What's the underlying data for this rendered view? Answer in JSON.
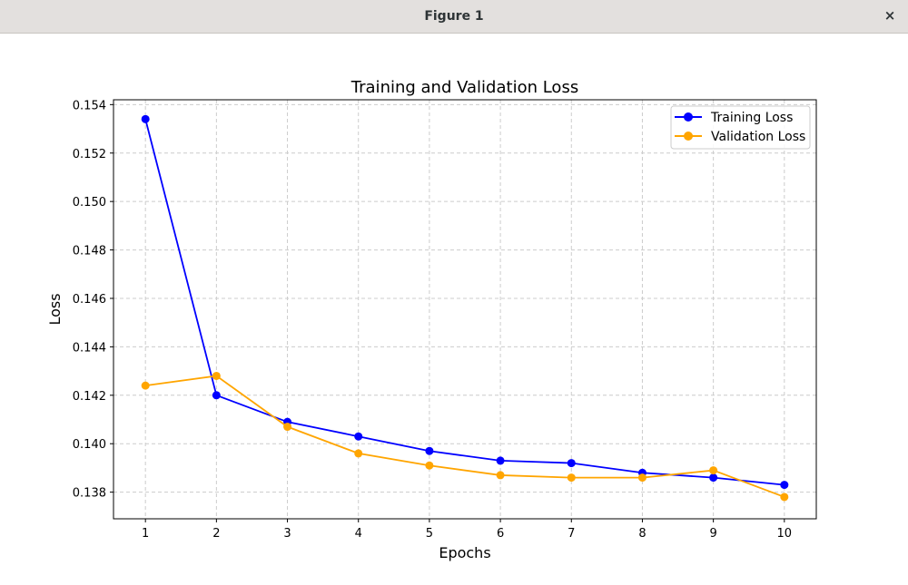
{
  "window": {
    "title": "Figure 1",
    "close_glyph": "×"
  },
  "chart_data": {
    "type": "line",
    "title": "Training and Validation Loss",
    "xlabel": "Epochs",
    "ylabel": "Loss",
    "x": [
      1,
      2,
      3,
      4,
      5,
      6,
      7,
      8,
      9,
      10
    ],
    "xticks": [
      "1",
      "2",
      "3",
      "4",
      "5",
      "6",
      "7",
      "8",
      "9",
      "10"
    ],
    "yticks": [
      "0.138",
      "0.140",
      "0.142",
      "0.144",
      "0.146",
      "0.148",
      "0.150",
      "0.152",
      "0.154"
    ],
    "ylim": [
      0.1369,
      0.1542
    ],
    "xlim": [
      0.55,
      10.45
    ],
    "grid": true,
    "legend_position": "top-right",
    "series": [
      {
        "name": "Training Loss",
        "color": "#0000ff",
        "marker": "circle",
        "values": [
          0.1534,
          0.142,
          0.1409,
          0.1403,
          0.1397,
          0.1393,
          0.1392,
          0.1388,
          0.1386,
          0.1383
        ]
      },
      {
        "name": "Validation Loss",
        "color": "#ffa500",
        "marker": "circle",
        "values": [
          0.1424,
          0.1428,
          0.1407,
          0.1396,
          0.1391,
          0.1387,
          0.1386,
          0.1386,
          0.1389,
          0.1378
        ]
      }
    ]
  }
}
